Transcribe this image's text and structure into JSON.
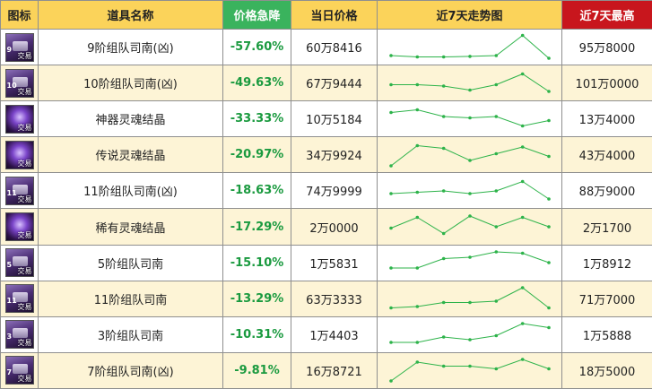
{
  "header": {
    "icon": "图标",
    "name": "道具名称",
    "drop": "价格急降",
    "today": "当日价格",
    "trend": "近7天走势图",
    "max": "近7天最高"
  },
  "colors": {
    "header_bg": "#fbd35a",
    "drop_header_bg": "#3ab35d",
    "max_header_bg": "#c8161d",
    "drop_text": "#1a9a3f",
    "trend_line": "#2db34a",
    "row_alt_bg": "#fdf4d6"
  },
  "rows": [
    {
      "icon": "box-icon",
      "icon_num": "9",
      "icon_tag": "交易",
      "name": "9阶组队司南(凶)",
      "drop": "-57.60%",
      "today": "60万8416",
      "max": "95万8000",
      "trend": [
        0.2,
        0.15,
        0.15,
        0.17,
        0.2,
        0.95,
        0.1
      ]
    },
    {
      "icon": "box-icon",
      "icon_num": "10",
      "icon_tag": "交易",
      "name": "10阶组队司南(凶)",
      "drop": "-49.63%",
      "today": "67万9444",
      "max": "101万0000",
      "trend": [
        0.45,
        0.45,
        0.4,
        0.25,
        0.45,
        0.85,
        0.2
      ]
    },
    {
      "icon": "orb-icon",
      "icon_num": "",
      "icon_tag": "交易",
      "name": "神器灵魂结晶",
      "drop": "-33.33%",
      "today": "10万5184",
      "max": "13万4000",
      "trend": [
        0.75,
        0.85,
        0.6,
        0.55,
        0.6,
        0.25,
        0.45
      ]
    },
    {
      "icon": "orb-icon",
      "icon_num": "",
      "icon_tag": "交易",
      "name": "传说灵魂结晶",
      "drop": "-20.97%",
      "today": "34万9924",
      "max": "43万4000",
      "trend": [
        0.1,
        0.85,
        0.75,
        0.3,
        0.55,
        0.8,
        0.45
      ]
    },
    {
      "icon": "box-icon",
      "icon_num": "11",
      "icon_tag": "交易",
      "name": "11阶组队司南(凶)",
      "drop": "-18.63%",
      "today": "74万9999",
      "max": "88万9000",
      "trend": [
        0.4,
        0.45,
        0.5,
        0.4,
        0.5,
        0.85,
        0.2
      ]
    },
    {
      "icon": "orb-icon",
      "icon_num": "",
      "icon_tag": "交易",
      "name": "稀有灵魂结晶",
      "drop": "-17.29%",
      "today": "2万0000",
      "max": "2万1700",
      "trend": [
        0.45,
        0.85,
        0.25,
        0.9,
        0.5,
        0.85,
        0.5
      ]
    },
    {
      "icon": "box-icon",
      "icon_num": "5",
      "icon_tag": "交易",
      "name": "5阶组队司南",
      "drop": "-15.10%",
      "today": "1万5831",
      "max": "1万8912",
      "trend": [
        0.3,
        0.3,
        0.65,
        0.7,
        0.9,
        0.85,
        0.5
      ]
    },
    {
      "icon": "box-icon",
      "icon_num": "11",
      "icon_tag": "交易",
      "name": "11阶组队司南",
      "drop": "-13.29%",
      "today": "63万3333",
      "max": "71万7000",
      "trend": [
        0.15,
        0.2,
        0.35,
        0.35,
        0.4,
        0.9,
        0.15
      ]
    },
    {
      "icon": "box-icon",
      "icon_num": "3",
      "icon_tag": "交易",
      "name": "3阶组队司南",
      "drop": "-10.31%",
      "today": "1万4403",
      "max": "1万5888",
      "trend": [
        0.2,
        0.2,
        0.4,
        0.3,
        0.45,
        0.9,
        0.75
      ]
    },
    {
      "icon": "box-icon",
      "icon_num": "7",
      "icon_tag": "交易",
      "name": "7阶组队司南(凶)",
      "drop": "-9.81%",
      "today": "16万8721",
      "max": "18万5000",
      "trend": [
        0.1,
        0.8,
        0.65,
        0.65,
        0.55,
        0.9,
        0.55
      ]
    }
  ]
}
